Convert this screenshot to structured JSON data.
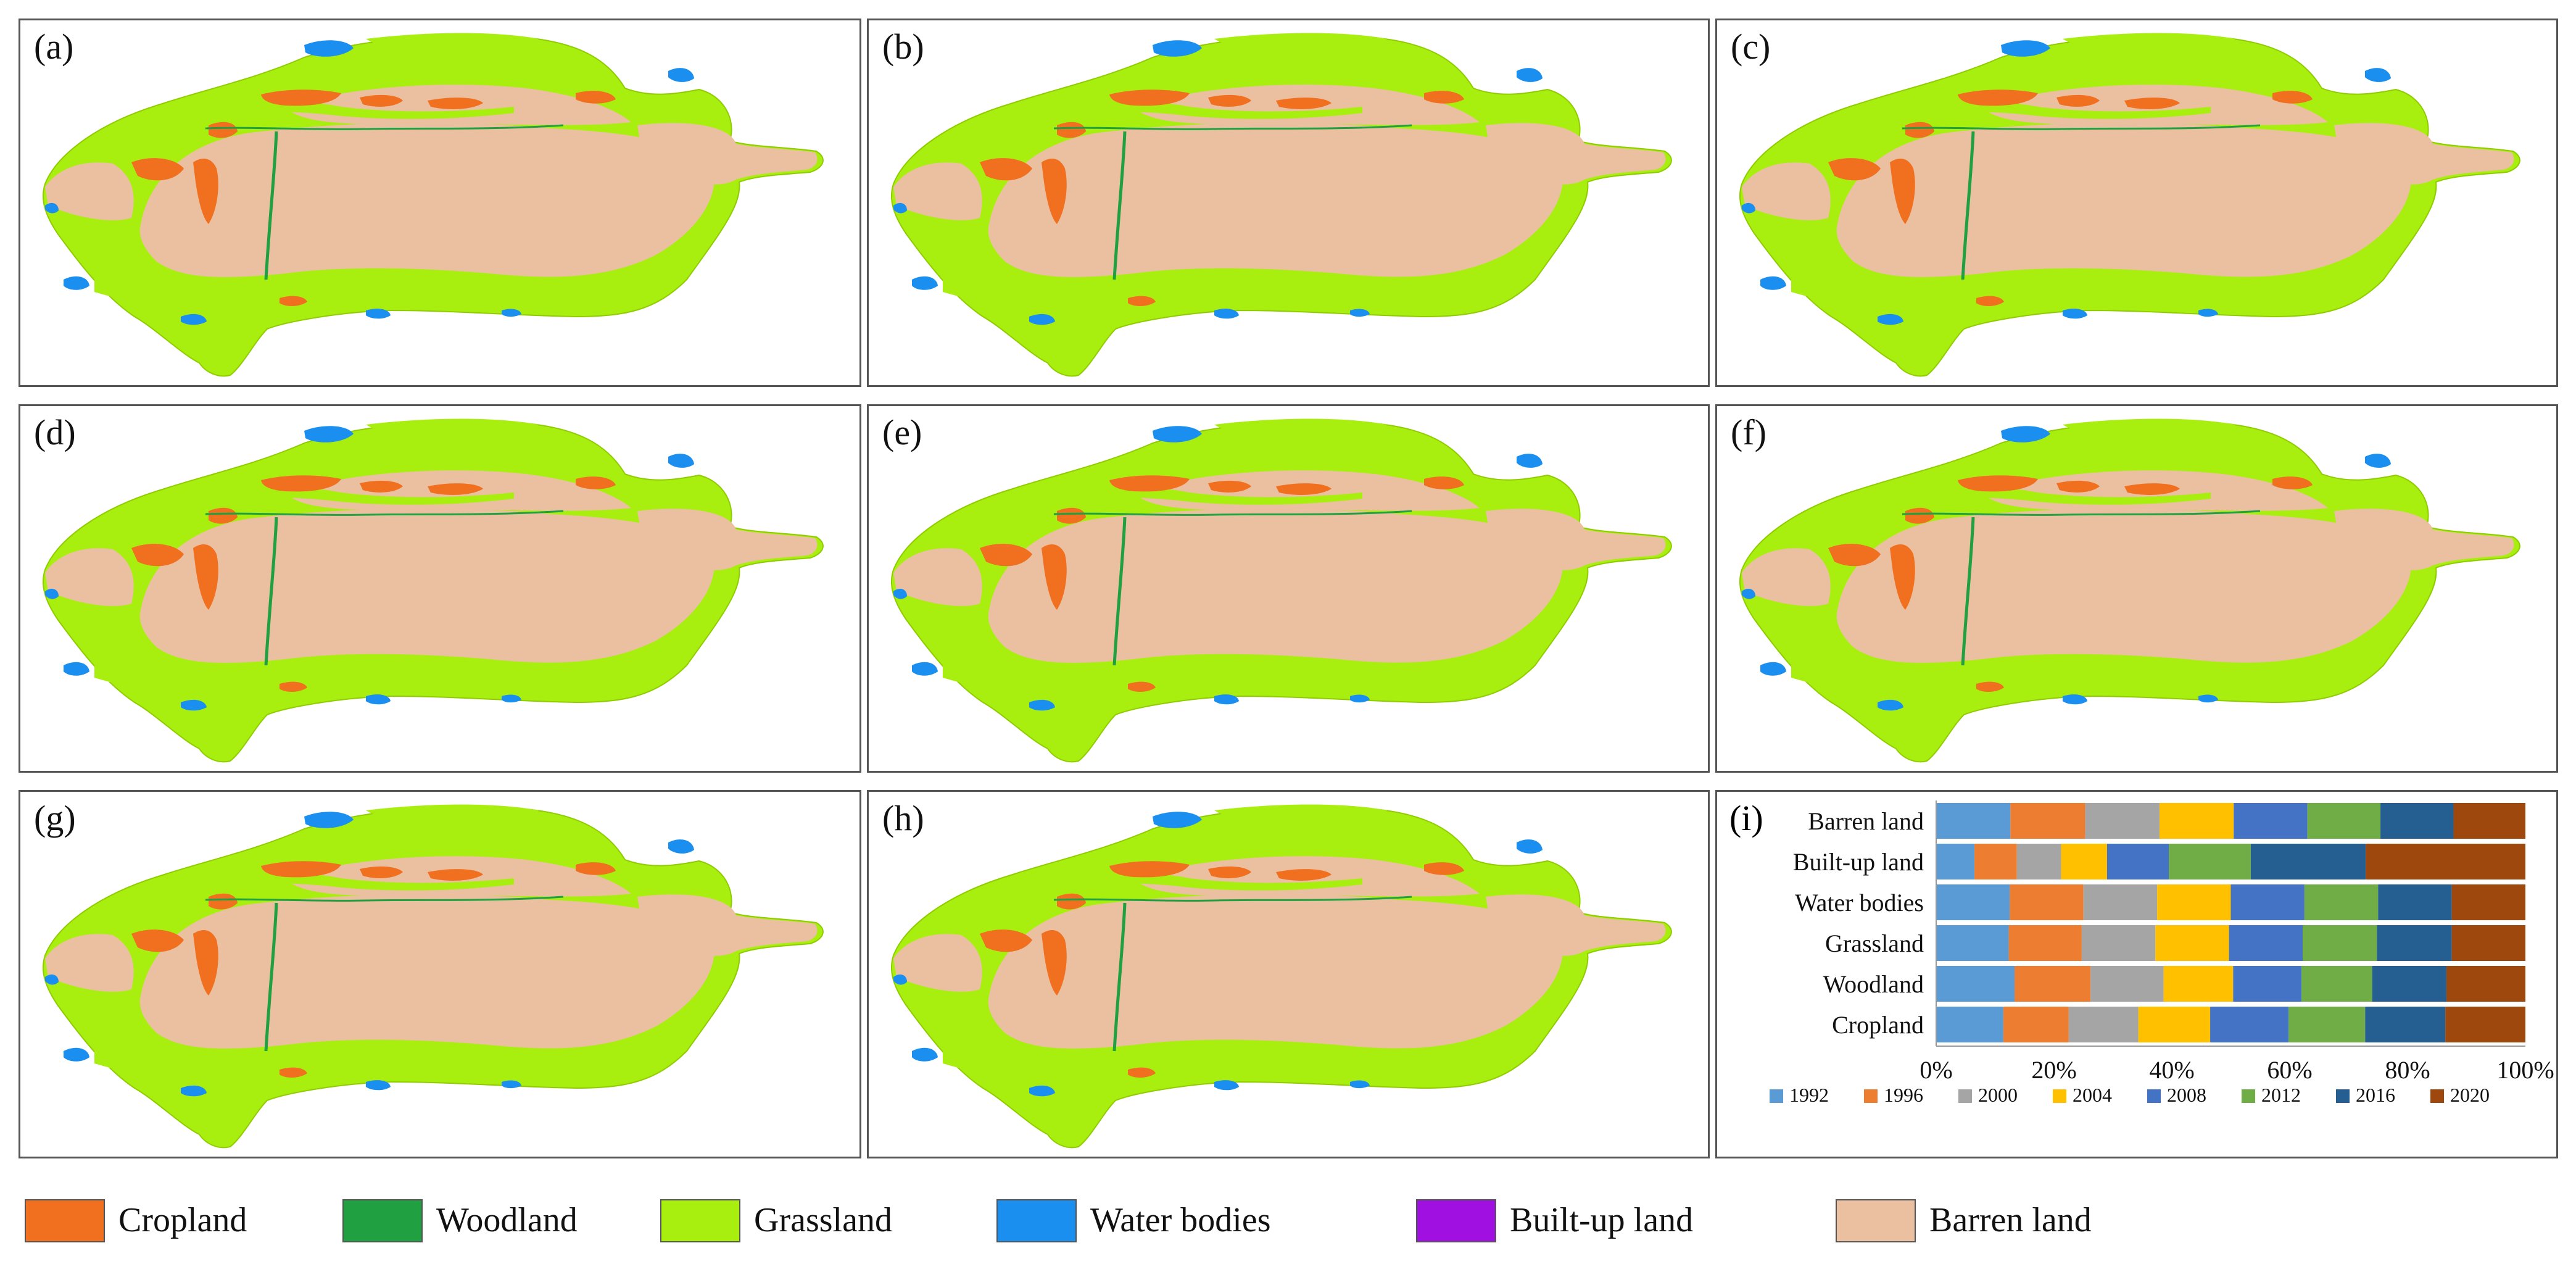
{
  "panels": [
    {
      "id": "a",
      "label": "(a)"
    },
    {
      "id": "b",
      "label": "(b)"
    },
    {
      "id": "c",
      "label": "(c)"
    },
    {
      "id": "d",
      "label": "(d)"
    },
    {
      "id": "e",
      "label": "(e)"
    },
    {
      "id": "f",
      "label": "(f)"
    },
    {
      "id": "g",
      "label": "(g)"
    },
    {
      "id": "h",
      "label": "(h)"
    }
  ],
  "legend": [
    {
      "label": "Cropland",
      "color": "#f07020"
    },
    {
      "label": "Woodland",
      "color": "#20a040"
    },
    {
      "label": "Grassland",
      "color": "#a8ef10"
    },
    {
      "label": "Water bodies",
      "color": "#1a8fef"
    },
    {
      "label": "Built-up land",
      "color": "#a010e0"
    },
    {
      "label": "Barren land",
      "color": "#eac0a0"
    }
  ],
  "chart_panel_label": "(i)",
  "chart_data": {
    "type": "bar",
    "stacked": true,
    "orientation": "horizontal",
    "categories": [
      "Barren land",
      "Built-up land",
      "Water bodies",
      "Grassland",
      "Woodland",
      "Cropland"
    ],
    "series": [
      {
        "name": "1992",
        "color": "#5b9bd5",
        "values": [
          12.6,
          6.5,
          12.5,
          12.3,
          13.3,
          11.4
        ]
      },
      {
        "name": "1996",
        "color": "#ed7d31",
        "values": [
          12.7,
          7.2,
          12.5,
          12.4,
          12.9,
          11.1
        ]
      },
      {
        "name": "2000",
        "color": "#a5a5a5",
        "values": [
          12.6,
          7.5,
          12.5,
          12.5,
          12.4,
          11.8
        ]
      },
      {
        "name": "2004",
        "color": "#ffc000",
        "values": [
          12.6,
          7.8,
          12.5,
          12.5,
          11.8,
          12.2
        ]
      },
      {
        "name": "2008",
        "color": "#4472c4",
        "values": [
          12.5,
          10.5,
          12.5,
          12.5,
          11.6,
          13.3
        ]
      },
      {
        "name": "2012",
        "color": "#70ad47",
        "values": [
          12.4,
          13.9,
          12.5,
          12.6,
          12.0,
          13.0
        ]
      },
      {
        "name": "2016",
        "color": "#255e91",
        "values": [
          12.4,
          19.5,
          12.5,
          12.7,
          12.6,
          13.6
        ]
      },
      {
        "name": "2020",
        "color": "#9e480e",
        "values": [
          12.2,
          27.1,
          12.5,
          12.5,
          13.4,
          13.6
        ]
      }
    ],
    "xlim": [
      0,
      100
    ],
    "xticks": [
      "0%",
      "20%",
      "40%",
      "60%",
      "80%",
      "100%"
    ],
    "legend_position": "bottom"
  }
}
